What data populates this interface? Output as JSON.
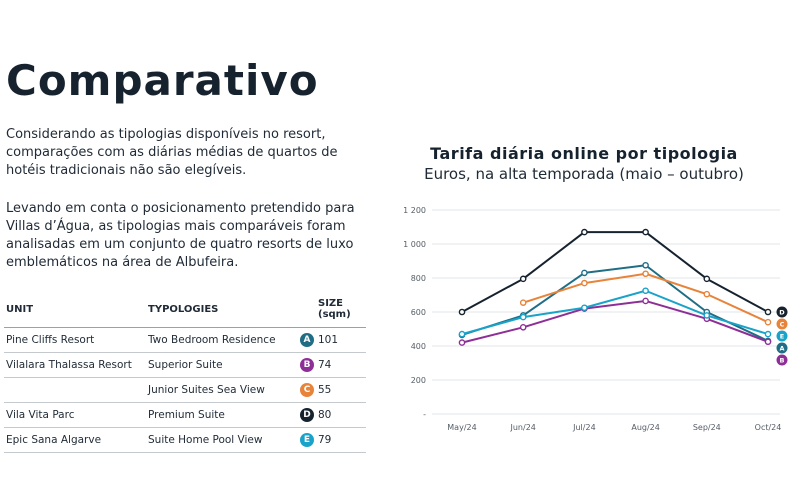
{
  "title": "Comparativo",
  "paragraphs": [
    "Considerando as tipologias disponíveis no resort, comparações com as diárias médias de quartos de hotéis tradicionais não são elegíveis.",
    "Levando em conta o posicionamento pretendido para Villas d’Água, as tipologias mais comparáveis foram analisadas em um conjunto de quatro resorts de luxo emblemáticos na área de Albufeira."
  ],
  "table": {
    "headers": [
      "UNIT",
      "TYPOLOGIES",
      "SIZE (sqm)"
    ],
    "rows": [
      {
        "unit": "Pine Cliffs Resort",
        "typology": "Two Bedroom Residence",
        "badge": "A",
        "size": "101"
      },
      {
        "unit": "Vilalara Thalassa Resort",
        "typology": "Superior Suite",
        "badge": "B",
        "size": "74"
      },
      {
        "unit": "",
        "typology": "Junior Suites Sea View",
        "badge": "C",
        "size": "55"
      },
      {
        "unit": "Vila Vita Parc",
        "typology": "Premium Suite",
        "badge": "D",
        "size": "80"
      },
      {
        "unit": "Epic Sana Algarve",
        "typology": "Suite Home Pool View",
        "badge": "E",
        "size": "79"
      }
    ]
  },
  "badge_colors": {
    "A": "#1f6e86",
    "B": "#8e2f97",
    "C": "#e8833a",
    "D": "#16232f",
    "E": "#1aa3c9"
  },
  "chart_data": {
    "type": "line",
    "title": "Tarifa diária online por tipologia",
    "subtitle": "Euros, na alta temporada (maio – outubro)",
    "categories": [
      "May/24",
      "Jun/24",
      "Jul/24",
      "Aug/24",
      "Sep/24",
      "Oct/24"
    ],
    "y_ticks": [
      "-",
      "200",
      "400",
      "600",
      "800",
      "1 000",
      "1 200"
    ],
    "ylim": [
      0,
      1200
    ],
    "grid": "horizontal",
    "series": [
      {
        "name": "A",
        "color": "#1f6e86",
        "values": [
          465,
          580,
          830,
          875,
          600,
          430
        ]
      },
      {
        "name": "B",
        "color": "#8e2f97",
        "values": [
          420,
          510,
          620,
          665,
          560,
          425
        ]
      },
      {
        "name": "C",
        "color": "#e8833a",
        "values": [
          null,
          655,
          770,
          825,
          705,
          540
        ]
      },
      {
        "name": "D",
        "color": "#16232f",
        "values": [
          600,
          795,
          1070,
          1070,
          795,
          600
        ]
      },
      {
        "name": "E",
        "color": "#1aa3c9",
        "values": [
          470,
          570,
          625,
          725,
          580,
          470
        ]
      }
    ]
  }
}
